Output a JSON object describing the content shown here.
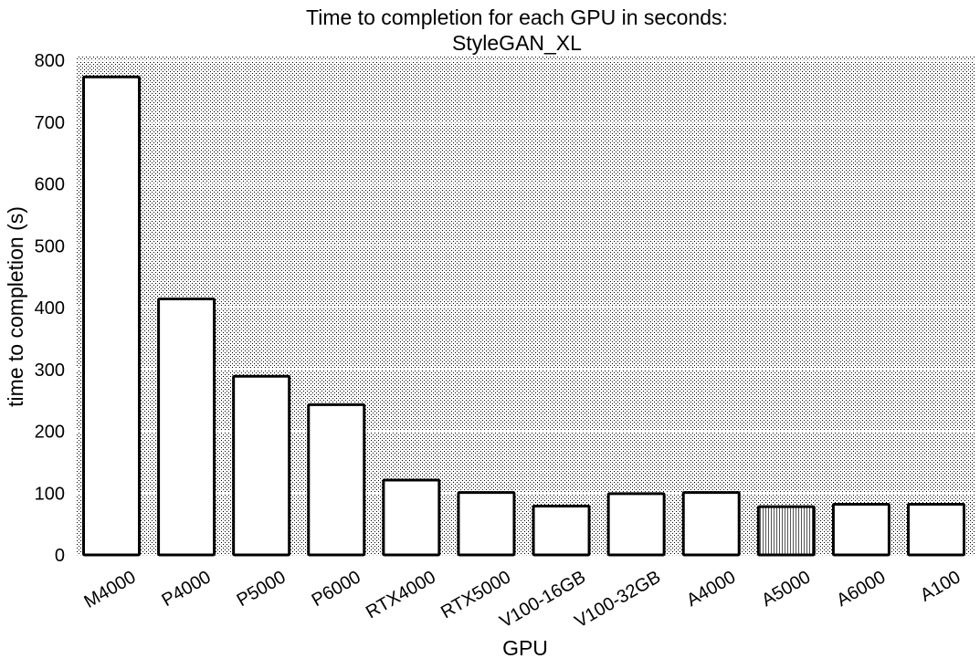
{
  "chart_data": {
    "type": "bar",
    "title": "Time to completion for each GPU in seconds:",
    "subtitle": "StyleGAN_XL",
    "xlabel": "GPU",
    "ylabel": "time to completion (s)",
    "categories": [
      "M4000",
      "P4000",
      "P5000",
      "P6000",
      "RTX4000",
      "RTX5000",
      "V100-16GB",
      "V100-32GB",
      "A4000",
      "A5000",
      "A6000",
      "A100"
    ],
    "values": [
      773,
      414,
      289,
      243,
      121,
      101,
      79,
      99,
      101,
      78,
      82,
      82
    ],
    "ylim": [
      0,
      800
    ],
    "yticks": [
      0,
      100,
      200,
      300,
      400,
      500,
      600,
      700,
      800
    ],
    "grid": "horizontal",
    "legend": "none",
    "colors": {
      "bar_fill": "#ffffff",
      "bar_edge": "#000000",
      "background_dots": "#000000",
      "grid": "#ffffff"
    }
  }
}
